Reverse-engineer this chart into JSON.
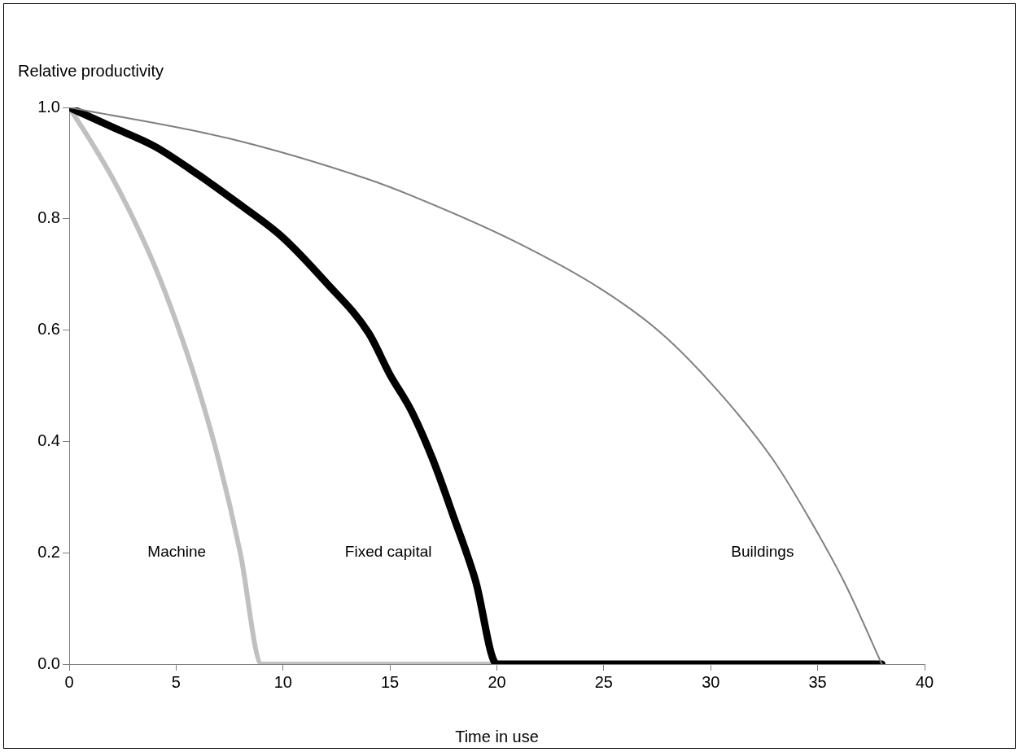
{
  "chart_data": {
    "type": "line",
    "xlabel": "Time in use",
    "ylabel": "Relative productivity",
    "xlim": [
      0,
      40
    ],
    "xticks": [
      0,
      5,
      10,
      15,
      20,
      25,
      30,
      35,
      40
    ],
    "ylim": [
      0,
      1
    ],
    "yticks": [
      {
        "value": 0,
        "label": "0.0"
      },
      {
        "value": 0.2,
        "label": "0.2"
      },
      {
        "value": 0.4,
        "label": "0.4"
      },
      {
        "value": 0.6,
        "label": "0.6"
      },
      {
        "value": 0.8,
        "label": "0.8"
      },
      {
        "value": 1,
        "label": "1.0"
      }
    ],
    "grid": false,
    "legend": false,
    "marker": "none",
    "line_style": "solid",
    "series": [
      {
        "name": "Buildings",
        "color": "#808080",
        "x": [
          0,
          7.5,
          13.9,
          16.1,
          20.8,
          24.9,
          27.7,
          30.4,
          32.9,
          34.6,
          36.3,
          38
        ],
        "values": [
          1,
          0.944,
          0.872,
          0.84,
          0.76,
          0.673,
          0.594,
          0.488,
          0.368,
          0.262,
          0.143,
          0
        ]
      },
      {
        "name": "Fixed capital",
        "color": "#000000",
        "x": [
          0,
          2,
          4,
          6,
          8,
          10,
          12,
          14,
          15,
          16,
          17,
          18,
          19,
          20,
          38
        ],
        "values": [
          1,
          0.965,
          0.93,
          0.88,
          0.825,
          0.766,
          0.686,
          0.595,
          0.52,
          0.455,
          0.368,
          0.262,
          0.15,
          0,
          0
        ]
      },
      {
        "name": "Machine",
        "color": "#c0c0c0",
        "x": [
          0,
          1,
          2,
          3,
          4,
          5,
          6,
          7,
          8,
          9,
          38
        ],
        "values": [
          1,
          0.94,
          0.875,
          0.8,
          0.715,
          0.615,
          0.5,
          0.365,
          0.2,
          0,
          0
        ]
      }
    ]
  }
}
